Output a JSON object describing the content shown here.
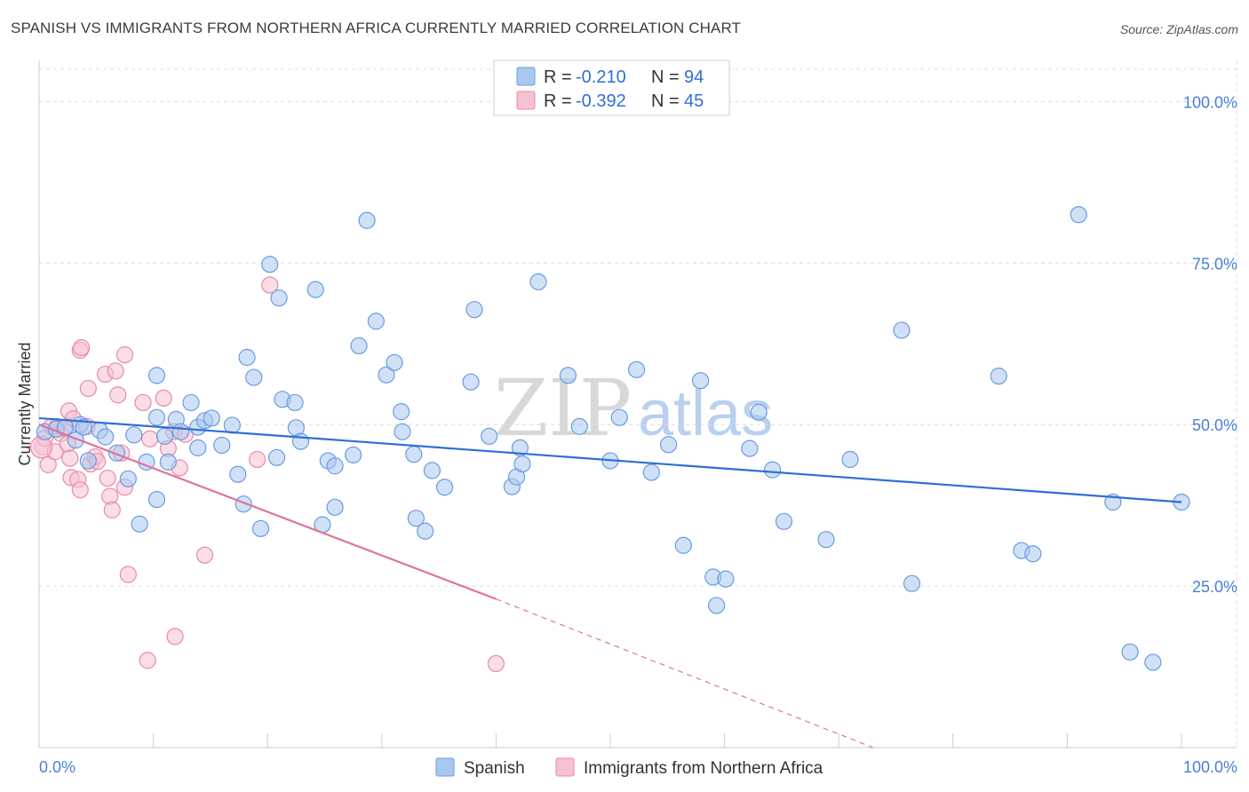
{
  "title": "SPANISH VS IMMIGRANTS FROM NORTHERN AFRICA CURRENTLY MARRIED CORRELATION CHART",
  "source": "Source: ZipAtlas.com",
  "watermark": {
    "part1": "ZIP",
    "part2": "atlas"
  },
  "legend": {
    "r_label": "R =",
    "n_label": "N =",
    "rows": [
      {
        "r": "-0.210",
        "n": "94",
        "color": "#a9c8f0",
        "border": "#6a9be0"
      },
      {
        "r": "-0.392",
        "n": "45",
        "color": "#f8c1d2",
        "border": "#e88aa8"
      }
    ]
  },
  "bottom_legend": [
    "Spanish",
    "Immigrants from Northern Africa"
  ],
  "chart_data": {
    "type": "scatter",
    "title": "SPANISH VS IMMIGRANTS FROM NORTHERN AFRICA CURRENTLY MARRIED CORRELATION CHART",
    "xlabel": "",
    "ylabel": "Currently Married",
    "xlim": [
      0,
      100
    ],
    "ylim": [
      0,
      105
    ],
    "x_tick_labels": [
      "0.0%",
      "100.0%"
    ],
    "y_ticks": [
      25,
      50,
      75,
      100
    ],
    "y_tick_labels": [
      "25.0%",
      "50.0%",
      "75.0%",
      "100.0%"
    ],
    "grid": true,
    "legend_position": "top-center",
    "series": [
      {
        "name": "Spanish",
        "color": "#6a9be0",
        "fill": "#a9c8f0",
        "trend": {
          "x": [
            0,
            100
          ],
          "y": [
            51.0,
            38.0
          ],
          "color": "#2f6fd6"
        },
        "points": [
          [
            0.5,
            48.9
          ],
          [
            1.5,
            49.3
          ],
          [
            2.3,
            49.6
          ],
          [
            3.2,
            47.6
          ],
          [
            3.6,
            50.0
          ],
          [
            3.9,
            49.6
          ],
          [
            4.3,
            44.4
          ],
          [
            5.3,
            49.1
          ],
          [
            5.8,
            48.1
          ],
          [
            6.8,
            45.6
          ],
          [
            7.8,
            41.6
          ],
          [
            8.3,
            48.4
          ],
          [
            8.8,
            34.6
          ],
          [
            9.4,
            44.2
          ],
          [
            10.3,
            51.1
          ],
          [
            10.3,
            57.6
          ],
          [
            10.3,
            38.4
          ],
          [
            11.0,
            48.2
          ],
          [
            11.3,
            44.2
          ],
          [
            12.0,
            50.8
          ],
          [
            12.4,
            48.9
          ],
          [
            13.3,
            53.4
          ],
          [
            13.9,
            49.6
          ],
          [
            13.9,
            46.4
          ],
          [
            14.5,
            50.6
          ],
          [
            15.1,
            51.0
          ],
          [
            16.0,
            46.8
          ],
          [
            16.9,
            49.9
          ],
          [
            17.4,
            42.3
          ],
          [
            17.9,
            37.7
          ],
          [
            18.2,
            60.4
          ],
          [
            18.8,
            57.3
          ],
          [
            19.4,
            33.9
          ],
          [
            20.2,
            74.8
          ],
          [
            20.8,
            44.9
          ],
          [
            21.0,
            69.6
          ],
          [
            21.3,
            53.9
          ],
          [
            22.4,
            53.4
          ],
          [
            22.5,
            49.5
          ],
          [
            22.9,
            47.4
          ],
          [
            24.2,
            70.9
          ],
          [
            24.8,
            34.5
          ],
          [
            25.3,
            44.4
          ],
          [
            25.9,
            37.2
          ],
          [
            25.9,
            43.6
          ],
          [
            27.5,
            45.3
          ],
          [
            28.0,
            62.2
          ],
          [
            28.7,
            81.6
          ],
          [
            29.5,
            66.0
          ],
          [
            30.4,
            57.7
          ],
          [
            31.1,
            59.6
          ],
          [
            31.7,
            52.0
          ],
          [
            31.8,
            48.9
          ],
          [
            32.8,
            45.4
          ],
          [
            33.0,
            35.5
          ],
          [
            33.8,
            33.5
          ],
          [
            34.4,
            42.9
          ],
          [
            35.5,
            40.3
          ],
          [
            37.8,
            56.6
          ],
          [
            38.1,
            67.8
          ],
          [
            39.4,
            48.2
          ],
          [
            41.4,
            40.4
          ],
          [
            41.8,
            41.9
          ],
          [
            42.1,
            46.4
          ],
          [
            42.3,
            43.9
          ],
          [
            43.7,
            72.1
          ],
          [
            46.3,
            57.6
          ],
          [
            47.3,
            49.7
          ],
          [
            50.0,
            44.4
          ],
          [
            50.8,
            51.1
          ],
          [
            52.3,
            58.5
          ],
          [
            53.6,
            42.6
          ],
          [
            55.1,
            46.9
          ],
          [
            56.4,
            31.3
          ],
          [
            57.9,
            56.8
          ],
          [
            59.0,
            26.4
          ],
          [
            59.3,
            22.0
          ],
          [
            60.1,
            26.1
          ],
          [
            62.2,
            46.3
          ],
          [
            63.0,
            51.9
          ],
          [
            64.2,
            43.0
          ],
          [
            65.2,
            35.0
          ],
          [
            68.9,
            32.2
          ],
          [
            71.0,
            44.6
          ],
          [
            75.5,
            64.6
          ],
          [
            76.4,
            25.4
          ],
          [
            84.0,
            57.5
          ],
          [
            86.0,
            30.5
          ],
          [
            87.0,
            30.0
          ],
          [
            91.0,
            82.5
          ],
          [
            94.0,
            38.0
          ],
          [
            95.5,
            14.8
          ],
          [
            97.5,
            13.2
          ],
          [
            100.0,
            38.0
          ]
        ]
      },
      {
        "name": "Immigrants from Northern Africa",
        "color": "#e88aa8",
        "fill": "#f8c1d2",
        "trend": {
          "x": [
            0,
            40.0
          ],
          "y": [
            50.0,
            23.0
          ],
          "color": "#e0739a",
          "dash_to": [
            73.0,
            0.0
          ]
        },
        "points": [
          [
            0.3,
            46.6
          ],
          [
            0.5,
            47.9
          ],
          [
            0.8,
            43.8
          ],
          [
            1.1,
            49.7
          ],
          [
            1.4,
            45.8
          ],
          [
            1.6,
            49.7
          ],
          [
            1.9,
            48.6
          ],
          [
            2.2,
            49.4
          ],
          [
            2.5,
            47.0
          ],
          [
            2.6,
            52.1
          ],
          [
            2.7,
            44.8
          ],
          [
            2.8,
            41.8
          ],
          [
            3.0,
            50.9
          ],
          [
            3.4,
            41.5
          ],
          [
            3.6,
            39.9
          ],
          [
            3.6,
            61.5
          ],
          [
            3.7,
            61.9
          ],
          [
            4.2,
            49.7
          ],
          [
            4.3,
            55.6
          ],
          [
            4.5,
            43.9
          ],
          [
            4.9,
            45.0
          ],
          [
            5.1,
            44.3
          ],
          [
            5.8,
            57.8
          ],
          [
            6.0,
            41.7
          ],
          [
            6.2,
            38.9
          ],
          [
            6.4,
            36.8
          ],
          [
            6.7,
            58.3
          ],
          [
            6.9,
            54.6
          ],
          [
            7.2,
            45.6
          ],
          [
            7.5,
            60.8
          ],
          [
            7.5,
            40.3
          ],
          [
            7.8,
            26.8
          ],
          [
            9.1,
            53.4
          ],
          [
            9.5,
            13.5
          ],
          [
            9.7,
            47.8
          ],
          [
            10.9,
            54.1
          ],
          [
            11.3,
            46.3
          ],
          [
            11.8,
            48.9
          ],
          [
            11.9,
            17.2
          ],
          [
            12.3,
            43.3
          ],
          [
            12.8,
            48.5
          ],
          [
            14.5,
            29.8
          ],
          [
            19.1,
            44.6
          ],
          [
            20.2,
            71.6
          ],
          [
            40.0,
            13.0
          ]
        ]
      }
    ]
  }
}
